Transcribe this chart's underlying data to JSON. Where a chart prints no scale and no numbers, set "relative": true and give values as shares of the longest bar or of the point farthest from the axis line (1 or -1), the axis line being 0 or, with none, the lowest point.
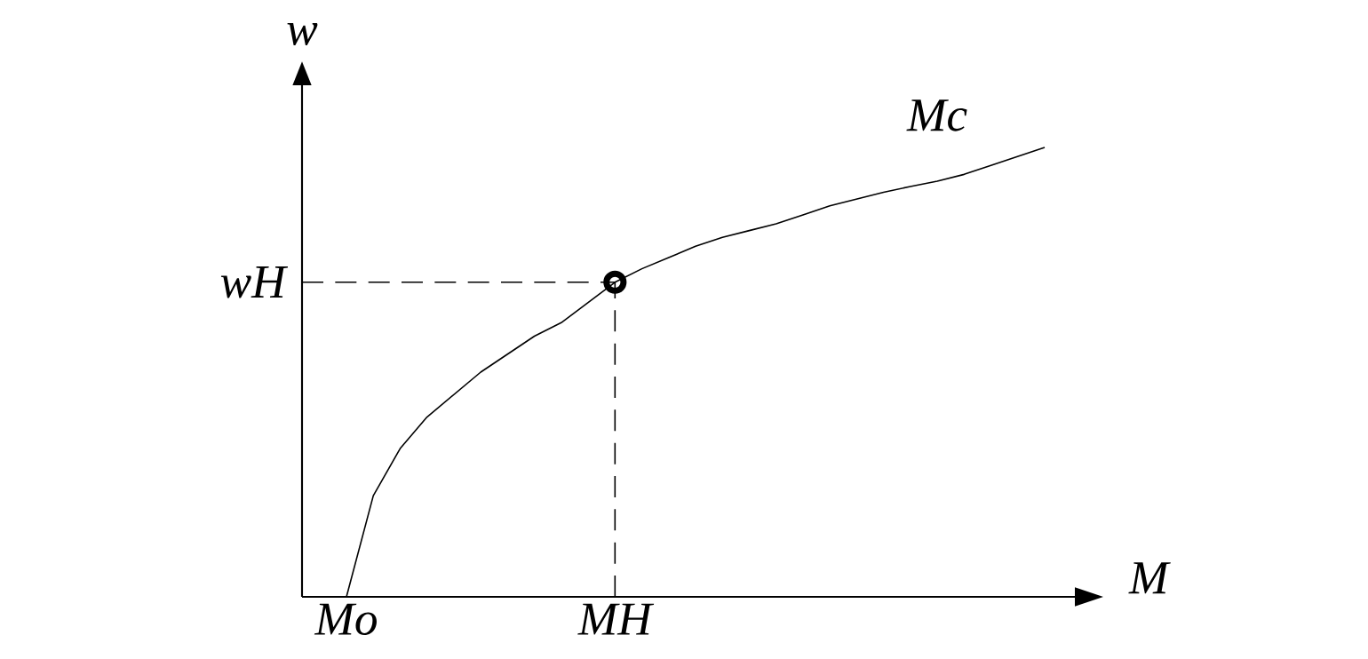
{
  "chart_data": {
    "type": "line",
    "relative": true,
    "xlabel": "M",
    "ylabel": "w",
    "categories": [
      "Mo",
      null,
      null,
      null,
      null,
      null,
      null,
      null,
      null,
      null,
      "MH",
      null,
      null,
      null,
      null,
      null,
      null,
      null,
      null,
      null,
      null,
      null,
      null,
      null,
      null,
      null,
      null
    ],
    "series": [
      {
        "color": "#000000",
        "values": [
          0,
          0.225,
          0.33,
          0.4,
          0.45,
          0.5,
          0.54,
          0.58,
          0.61,
          0.655,
          0.7,
          0.73,
          0.755,
          0.78,
          0.8,
          0.815,
          0.83,
          0.85,
          0.87,
          0.885,
          0.9,
          0.913,
          0.925,
          0.94,
          0.96,
          0.98,
          1.0
        ]
      }
    ],
    "ref_lines": [
      {
        "axis": "y",
        "value": 0.7,
        "label": "wH",
        "line_style": "dashed"
      }
    ],
    "annotations": [
      "Mc"
    ]
  }
}
